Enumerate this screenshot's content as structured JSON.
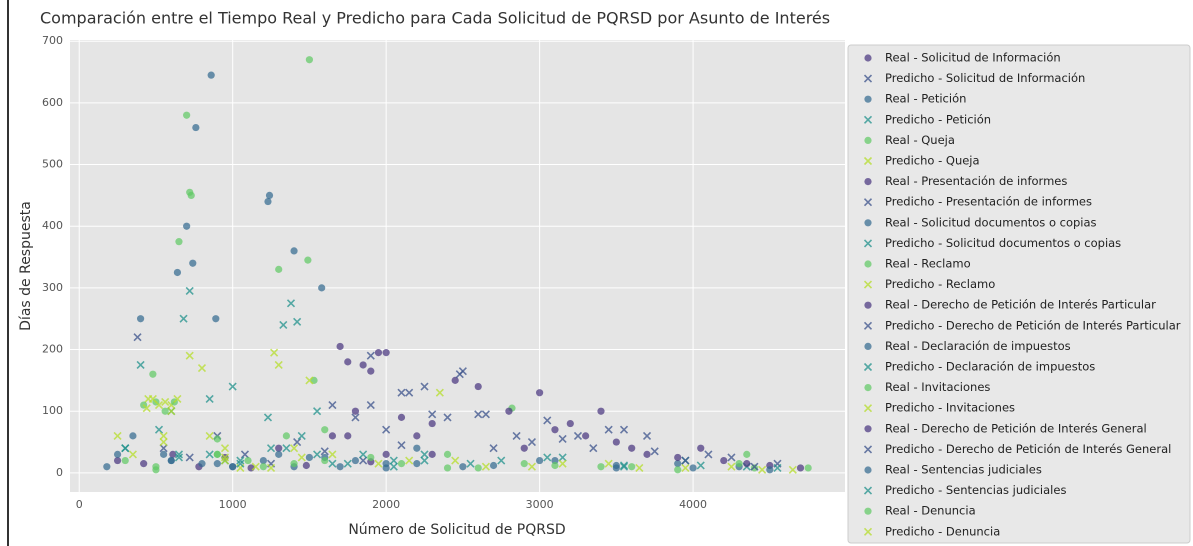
{
  "chart_data": {
    "type": "scatter",
    "title": "Comparación entre el Tiempo Real y Predicho para Cada Solicitud de PQRSD por Asunto de Interés",
    "x_label": "Número de Solicitud de PQRSD",
    "y_label": "Días de Respuesta",
    "xlim": [
      -60,
      4990
    ],
    "ylim": [
      -31,
      702
    ],
    "xticks": [
      0,
      1000,
      2000,
      3000,
      4000
    ],
    "yticks": [
      0,
      100,
      200,
      300,
      400,
      500,
      600,
      700
    ],
    "grid": true,
    "legend": "outside right",
    "series": [
      {
        "name": "Real - Solicitud de Información",
        "color": "#46327e",
        "marker": "o",
        "x": [
          250,
          420,
          610,
          780,
          950,
          1120,
          1300,
          1480,
          1650,
          1900
        ],
        "values": [
          20,
          15,
          30,
          10,
          25,
          8,
          40,
          12,
          60,
          18
        ]
      },
      {
        "name": "Predicho - Solicitud de Información",
        "color": "#3b528b",
        "marker": "x",
        "x": [
          380,
          550,
          720,
          900,
          1080,
          1250,
          1420,
          1600,
          1850,
          2100
        ],
        "values": [
          220,
          40,
          25,
          60,
          30,
          15,
          50,
          35,
          20,
          45
        ]
      },
      {
        "name": "Real - Petición",
        "color": "#31688e",
        "marker": "o",
        "x": [
          180,
          400,
          640,
          700,
          740,
          760,
          860,
          890,
          1230,
          1240,
          1400,
          1580
        ],
        "values": [
          10,
          250,
          325,
          400,
          340,
          560,
          645,
          250,
          440,
          450,
          360,
          300
        ]
      },
      {
        "name": "Predicho - Petición",
        "color": "#21918c",
        "marker": "x",
        "x": [
          300,
          520,
          680,
          720,
          850,
          1000,
          1230,
          1330,
          1380,
          1420,
          1550
        ],
        "values": [
          40,
          70,
          250,
          295,
          120,
          140,
          90,
          240,
          275,
          245,
          100
        ]
      },
      {
        "name": "Real - Queja",
        "color": "#5ec962",
        "marker": "o",
        "x": [
          480,
          650,
          700,
          720,
          730,
          1300,
          1490,
          1500,
          1530,
          2820
        ],
        "values": [
          160,
          375,
          580,
          455,
          450,
          330,
          345,
          670,
          150,
          105
        ]
      },
      {
        "name": "Predicho - Queja",
        "color": "#b5de2b",
        "marker": "x",
        "x": [
          250,
          450,
          600,
          720,
          800,
          950,
          1150,
          1270,
          1300,
          1500
        ],
        "values": [
          60,
          120,
          110,
          190,
          170,
          40,
          10,
          195,
          175,
          150
        ]
      },
      {
        "name": "Real - Presentación de informes",
        "color": "#46327e",
        "marker": "o",
        "x": [
          1700,
          1750,
          1800,
          1850,
          1900,
          1950,
          2000,
          2100,
          2200,
          2300
        ],
        "values": [
          205,
          180,
          100,
          175,
          165,
          195,
          195,
          90,
          60,
          30
        ]
      },
      {
        "name": "Predicho - Presentación de informes",
        "color": "#3b528b",
        "marker": "x",
        "x": [
          1650,
          1800,
          1900,
          2000,
          2150,
          2250,
          2400,
          2500,
          2600,
          2700
        ],
        "values": [
          110,
          90,
          190,
          70,
          130,
          140,
          90,
          165,
          95,
          40
        ]
      },
      {
        "name": "Real - Solicitud documentos o copias",
        "color": "#31688e",
        "marker": "o",
        "x": [
          350,
          550,
          800,
          1000,
          1200,
          1400,
          1600,
          1800,
          2000,
          2200
        ],
        "values": [
          60,
          30,
          15,
          10,
          20,
          10,
          25,
          20,
          8,
          15
        ]
      },
      {
        "name": "Predicho - Solicitud documentos o copias",
        "color": "#21918c",
        "marker": "x",
        "x": [
          400,
          600,
          850,
          1050,
          1250,
          1450,
          1650,
          1850,
          2050,
          2250
        ],
        "values": [
          175,
          100,
          30,
          20,
          40,
          60,
          15,
          30,
          10,
          20
        ]
      },
      {
        "name": "Real - Reclamo",
        "color": "#5ec962",
        "marker": "o",
        "x": [
          420,
          500,
          560,
          620,
          900,
          1100,
          1350,
          1600,
          2400,
          4350
        ],
        "values": [
          110,
          115,
          100,
          115,
          55,
          20,
          60,
          70,
          30,
          30
        ]
      },
      {
        "name": "Predicho - Reclamo",
        "color": "#b5de2b",
        "marker": "x",
        "x": [
          440,
          480,
          520,
          560,
          600,
          640,
          850,
          1050,
          1400,
          2350
        ],
        "values": [
          105,
          120,
          110,
          115,
          100,
          120,
          60,
          8,
          40,
          130
        ]
      },
      {
        "name": "Real - Derecho de Petición de Interés Particular",
        "color": "#46327e",
        "marker": "o",
        "x": [
          1750,
          2000,
          2300,
          2450,
          2600,
          2800,
          3000,
          3200,
          3400,
          3600
        ],
        "values": [
          60,
          30,
          80,
          150,
          140,
          100,
          130,
          80,
          100,
          40
        ]
      },
      {
        "name": "Predicho - Derecho de Petición de Interés Particular",
        "color": "#3b528b",
        "marker": "x",
        "x": [
          1900,
          2100,
          2300,
          2480,
          2650,
          2850,
          3050,
          3250,
          3450,
          3700
        ],
        "values": [
          110,
          130,
          95,
          160,
          95,
          60,
          85,
          60,
          70,
          60
        ]
      },
      {
        "name": "Real - Declaración de impuestos",
        "color": "#31688e",
        "marker": "o",
        "x": [
          600,
          900,
          1300,
          1700,
          2200,
          2700,
          3100,
          3500,
          3900,
          4300
        ],
        "values": [
          20,
          15,
          30,
          10,
          40,
          12,
          20,
          8,
          15,
          10
        ]
      },
      {
        "name": "Predicho - Declaración de impuestos",
        "color": "#21918c",
        "marker": "x",
        "x": [
          650,
          950,
          1350,
          1750,
          2250,
          2750,
          3150,
          3550,
          3950,
          4350
        ],
        "values": [
          30,
          20,
          40,
          15,
          30,
          20,
          25,
          12,
          20,
          10
        ]
      },
      {
        "name": "Real - Invitaciones",
        "color": "#5ec962",
        "marker": "o",
        "x": [
          300,
          500,
          900,
          1400,
          1900,
          2400,
          2900,
          3400,
          3900,
          4400
        ],
        "values": [
          20,
          10,
          30,
          15,
          25,
          8,
          15,
          10,
          5,
          8
        ]
      },
      {
        "name": "Predicho - Invitaciones",
        "color": "#b5de2b",
        "marker": "x",
        "x": [
          350,
          550,
          950,
          1450,
          1950,
          2450,
          2950,
          3450,
          3950,
          4450
        ],
        "values": [
          30,
          50,
          20,
          25,
          15,
          20,
          10,
          15,
          8,
          5
        ]
      },
      {
        "name": "Real - Derecho de Petición de Interés General",
        "color": "#46327e",
        "marker": "o",
        "x": [
          2900,
          3100,
          3300,
          3500,
          3700,
          3900,
          4050,
          4200,
          4350,
          4500,
          4700
        ],
        "values": [
          40,
          70,
          60,
          50,
          30,
          25,
          40,
          20,
          15,
          12,
          8
        ]
      },
      {
        "name": "Predicho - Derecho de Petición de Interés General",
        "color": "#3b528b",
        "marker": "x",
        "x": [
          2950,
          3150,
          3350,
          3550,
          3750,
          3950,
          4100,
          4250,
          4400,
          4550
        ],
        "values": [
          50,
          55,
          40,
          70,
          35,
          20,
          30,
          25,
          10,
          15
        ]
      },
      {
        "name": "Real - Sentencias judiciales",
        "color": "#31688e",
        "marker": "o",
        "x": [
          250,
          600,
          1000,
          1500,
          2000,
          2500,
          3000,
          3500,
          4000,
          4500
        ],
        "values": [
          30,
          20,
          10,
          25,
          15,
          10,
          20,
          12,
          8,
          5
        ]
      },
      {
        "name": "Predicho - Sentencias judiciales",
        "color": "#21918c",
        "marker": "x",
        "x": [
          300,
          650,
          1050,
          1550,
          2050,
          2550,
          3050,
          3550,
          4050,
          4550
        ],
        "values": [
          40,
          25,
          15,
          30,
          20,
          15,
          25,
          10,
          12,
          8
        ]
      },
      {
        "name": "Real - Denuncia",
        "color": "#5ec962",
        "marker": "o",
        "x": [
          500,
          900,
          1200,
          1600,
          2100,
          2600,
          3100,
          3600,
          4300,
          4750
        ],
        "values": [
          5,
          30,
          10,
          20,
          15,
          8,
          12,
          10,
          15,
          8
        ]
      },
      {
        "name": "Predicho - Denuncia",
        "color": "#b5de2b",
        "marker": "x",
        "x": [
          550,
          950,
          1250,
          1650,
          2150,
          2650,
          3150,
          3650,
          4250,
          4650
        ],
        "values": [
          60,
          25,
          8,
          30,
          20,
          10,
          15,
          8,
          10,
          5
        ]
      }
    ]
  }
}
